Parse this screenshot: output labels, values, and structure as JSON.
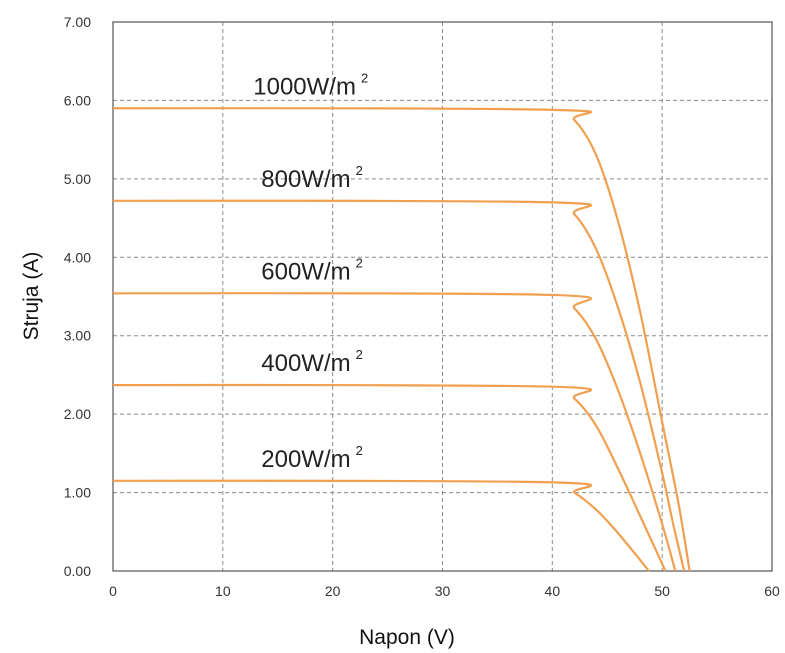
{
  "chart_data": {
    "type": "line",
    "xlabel": "Napon (V)",
    "ylabel": "Struja (A)",
    "xlim": [
      0,
      60
    ],
    "ylim": [
      0,
      7
    ],
    "xticks": [
      "0",
      "10",
      "20",
      "30",
      "40",
      "50",
      "60"
    ],
    "yticks": [
      "0.00",
      "1.00",
      "2.00",
      "3.00",
      "4.00",
      "5.00",
      "6.00",
      "7.00"
    ],
    "grid": true,
    "line_color": "#f0a050",
    "series": [
      {
        "name": "1000W/m",
        "sup": "2",
        "isc": 5.9,
        "knee_v": 40.5,
        "voc": 52.5,
        "x": [
          0,
          40,
          42,
          44,
          46,
          48,
          50,
          51.5,
          52.5
        ],
        "y": [
          5.9,
          5.88,
          5.75,
          5.3,
          4.45,
          3.3,
          1.9,
          0.85,
          0.0
        ]
      },
      {
        "name": "800W/m",
        "sup": "2",
        "isc": 4.72,
        "knee_v": 40.0,
        "voc": 52.0,
        "x": [
          0,
          40,
          42,
          44,
          46,
          48,
          50,
          51,
          52
        ],
        "y": [
          4.72,
          4.7,
          4.55,
          4.1,
          3.35,
          2.4,
          1.25,
          0.6,
          0.0
        ]
      },
      {
        "name": "600W/m",
        "sup": "2",
        "isc": 3.54,
        "knee_v": 40.0,
        "voc": 51.2,
        "x": [
          0,
          40,
          42,
          44,
          46,
          48,
          50,
          51.2
        ],
        "y": [
          3.54,
          3.52,
          3.35,
          2.95,
          2.3,
          1.5,
          0.6,
          0.0
        ]
      },
      {
        "name": "400W/m",
        "sup": "2",
        "isc": 2.37,
        "knee_v": 40.0,
        "voc": 50.3,
        "x": [
          0,
          40,
          42,
          44,
          46,
          48,
          50.3
        ],
        "y": [
          2.37,
          2.35,
          2.2,
          1.85,
          1.3,
          0.7,
          0.0
        ]
      },
      {
        "name": "200W/m",
        "sup": "2",
        "isc": 1.15,
        "knee_v": 40.0,
        "voc": 48.8,
        "x": [
          0,
          40,
          42,
          44,
          46,
          48.8
        ],
        "y": [
          1.15,
          1.13,
          1.0,
          0.78,
          0.48,
          0.0
        ]
      }
    ],
    "label_anchor_v": 13.5
  }
}
